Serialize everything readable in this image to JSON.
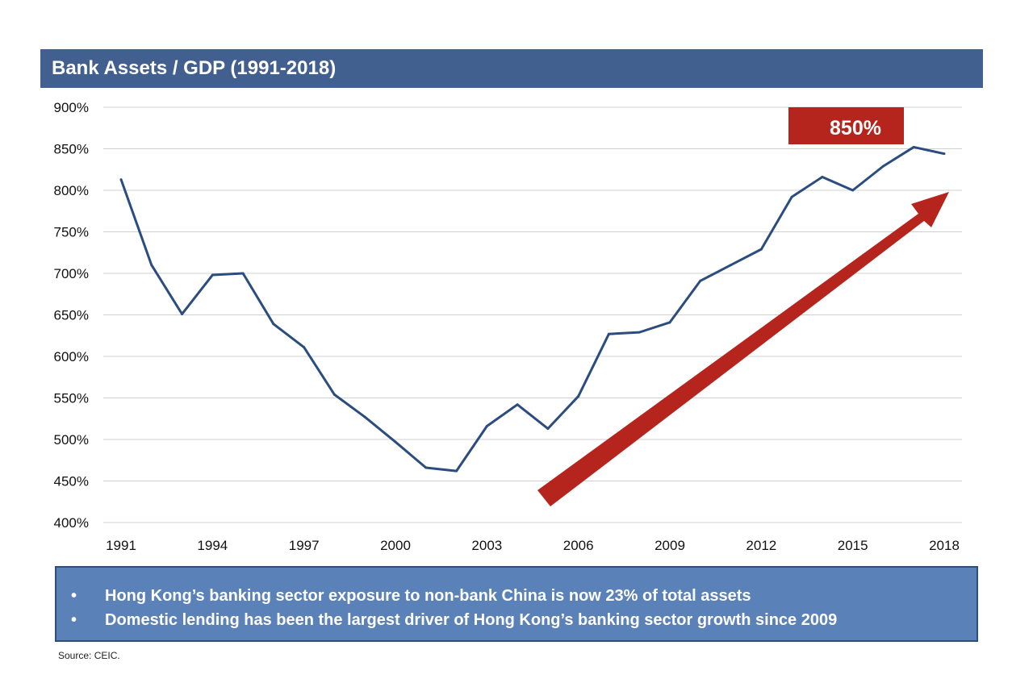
{
  "title": "Bank Assets / GDP (1991-2018)",
  "chart_data": {
    "type": "line",
    "x": [
      1991,
      1992,
      1993,
      1994,
      1995,
      1996,
      1997,
      1998,
      1999,
      2000,
      2001,
      2002,
      2003,
      2004,
      2005,
      2006,
      2007,
      2008,
      2009,
      2010,
      2011,
      2012,
      2013,
      2014,
      2015,
      2016,
      2017,
      2018
    ],
    "series": [
      {
        "values": [
          813,
          710,
          651,
          698,
          700,
          639,
          611,
          554,
          527,
          497,
          466,
          462,
          516,
          542,
          513,
          552,
          627,
          629,
          641,
          691,
          710,
          729,
          792,
          816,
          800,
          829,
          852,
          844
        ]
      }
    ],
    "x_tick_labels": [
      "1991",
      "1994",
      "1997",
      "2000",
      "2003",
      "2006",
      "2009",
      "2012",
      "2015",
      "2018"
    ],
    "y_tick_labels": [
      "400%",
      "450%",
      "500%",
      "550%",
      "600%",
      "650%",
      "700%",
      "750%",
      "800%",
      "850%",
      "900%"
    ],
    "ylim": [
      400,
      900
    ],
    "xlim": [
      1991,
      2018
    ],
    "grid": "horizontal",
    "annotation_label": "850%",
    "line_color": "#2b4c7e",
    "arrow_color": "#b5251e"
  },
  "notes": [
    "Hong Kong’s banking sector exposure to non-bank China is now 23% of total assets",
    "Domestic lending has been the largest driver of Hong Kong’s banking sector growth since 2009"
  ],
  "bullet_symbol": "•",
  "source": "Source: CEIC."
}
